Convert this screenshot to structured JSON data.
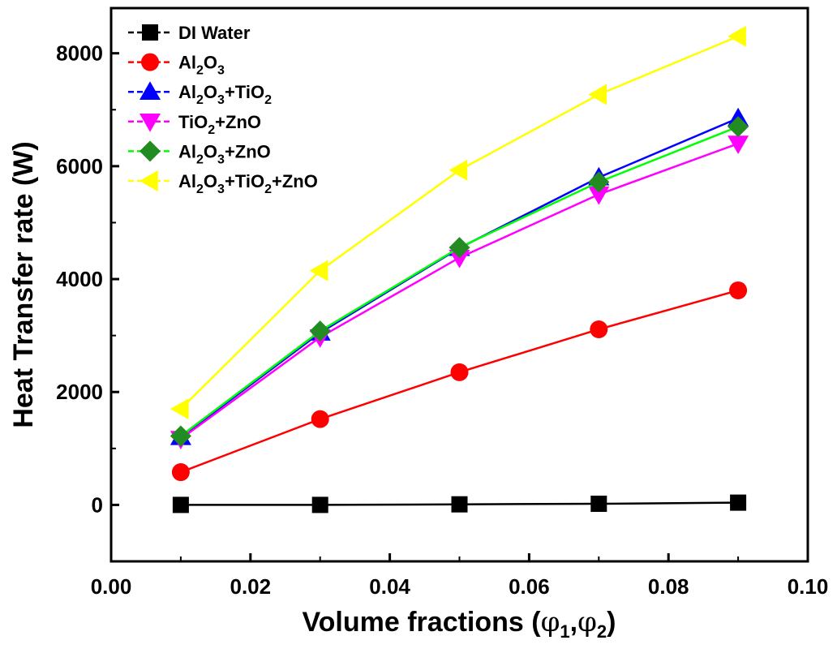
{
  "chart_data": {
    "type": "line",
    "title": "",
    "xlabel_main": "Volume fractions (",
    "xlabel_phi1": "φ",
    "xlabel_sub1": "1",
    "xlabel_comma": ",",
    "xlabel_phi2": "φ",
    "xlabel_sub2": "2",
    "xlabel_close": ")",
    "ylabel": "Heat Transfer rate (W)",
    "xlim": [
      0.0,
      0.1
    ],
    "ylim": [
      -1000,
      8800
    ],
    "xticks": [
      0.0,
      0.02,
      0.04,
      0.06,
      0.08,
      0.1
    ],
    "xtick_labels": [
      "0.00",
      "0.02",
      "0.04",
      "0.06",
      "0.08",
      "0.10"
    ],
    "yticks": [
      0,
      2000,
      4000,
      6000,
      8000
    ],
    "ytick_labels": [
      "0",
      "2000",
      "4000",
      "6000",
      "8000"
    ],
    "grid": false,
    "legend_position": "top-left",
    "x": [
      0.01,
      0.03,
      0.05,
      0.07,
      0.09
    ],
    "series": [
      {
        "key": "di-water",
        "legend": [
          {
            "t": "DI Water"
          }
        ],
        "color": "#000000",
        "marker": "square",
        "values": [
          0,
          0,
          10,
          20,
          40
        ]
      },
      {
        "key": "al2o3",
        "legend": [
          {
            "t": "Al"
          },
          {
            "t": "2",
            "sub": true
          },
          {
            "t": "O"
          },
          {
            "t": "3",
            "sub": true
          }
        ],
        "color": "#ff0000",
        "marker": "circle",
        "values": [
          580,
          1520,
          2350,
          3110,
          3800
        ]
      },
      {
        "key": "al2o3-tio2",
        "legend": [
          {
            "t": "Al"
          },
          {
            "t": "2",
            "sub": true
          },
          {
            "t": "O"
          },
          {
            "t": "3",
            "sub": true
          },
          {
            "t": "+TiO"
          },
          {
            "t": "2",
            "sub": true
          }
        ],
        "color": "#0000ff",
        "marker": "triangle-up",
        "values": [
          1200,
          3050,
          4550,
          5800,
          6850
        ]
      },
      {
        "key": "tio2-zno",
        "legend": [
          {
            "t": "TiO"
          },
          {
            "t": "2",
            "sub": true
          },
          {
            "t": "+ZnO"
          }
        ],
        "color": "#ff00ff",
        "marker": "triangle-down",
        "values": [
          1170,
          2970,
          4380,
          5500,
          6400
        ]
      },
      {
        "key": "al2o3-zno",
        "legend": [
          {
            "t": "Al"
          },
          {
            "t": "2",
            "sub": true
          },
          {
            "t": "O"
          },
          {
            "t": "3",
            "sub": true
          },
          {
            "t": "+ZnO"
          }
        ],
        "color": "#00ff00",
        "marker_color": "#228b22",
        "marker": "diamond",
        "values": [
          1220,
          3080,
          4560,
          5720,
          6700
        ]
      },
      {
        "key": "al2o3-tio2-zno",
        "legend": [
          {
            "t": "Al"
          },
          {
            "t": "2",
            "sub": true
          },
          {
            "t": "O"
          },
          {
            "t": "3",
            "sub": true
          },
          {
            "t": "+TiO"
          },
          {
            "t": "2",
            "sub": true
          },
          {
            "t": "+ZnO"
          }
        ],
        "color": "#ffff00",
        "marker": "triangle-left",
        "values": [
          1700,
          4150,
          5930,
          7270,
          8300
        ]
      }
    ]
  }
}
